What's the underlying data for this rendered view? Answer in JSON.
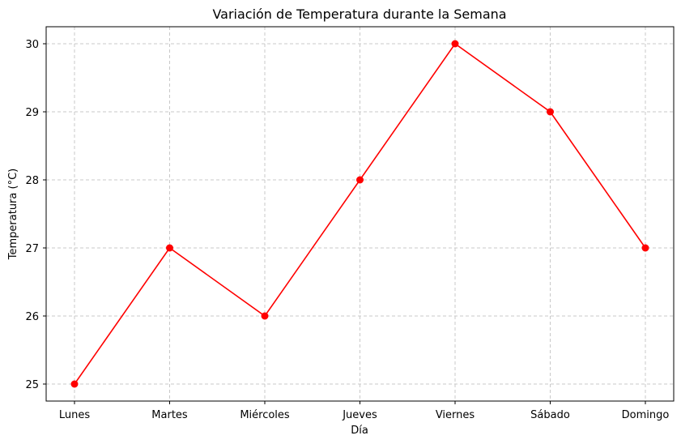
{
  "chart_data": {
    "type": "line",
    "title": "Variación de Temperatura durante la Semana",
    "xlabel": "Día",
    "ylabel": "Temperatura (°C)",
    "categories": [
      "Lunes",
      "Martes",
      "Miércoles",
      "Jueves",
      "Viernes",
      "Sábado",
      "Domingo"
    ],
    "series": [
      {
        "name": "Temperatura",
        "values": [
          25,
          27,
          26,
          28,
          30,
          29,
          27
        ],
        "color": "#ff0000",
        "marker": "circle"
      }
    ],
    "yticks": [
      25,
      26,
      27,
      28,
      29,
      30
    ],
    "ylim": [
      24.75,
      30.25
    ],
    "grid": true,
    "grid_style": "dashed",
    "legend": null
  }
}
